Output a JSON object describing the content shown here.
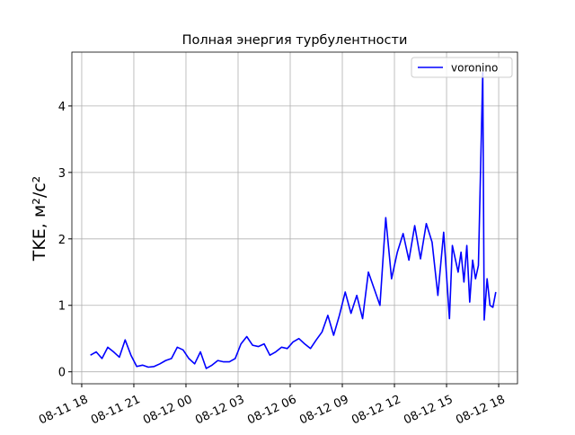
{
  "chart_data": {
    "type": "line",
    "title": "Полная энергия турбулентности",
    "y_label": "TKE, м²/с²",
    "x": [
      "08-11 18:30",
      "08-11 18:50",
      "08-11 19:10",
      "08-11 19:30",
      "08-11 19:50",
      "08-11 20:10",
      "08-11 20:30",
      "08-11 20:50",
      "08-11 21:10",
      "08-11 21:30",
      "08-11 21:50",
      "08-11 22:10",
      "08-11 22:30",
      "08-11 22:50",
      "08-11 23:10",
      "08-11 23:30",
      "08-11 23:50",
      "08-12 00:10",
      "08-12 00:30",
      "08-12 00:50",
      "08-12 01:10",
      "08-12 01:30",
      "08-12 01:50",
      "08-12 02:10",
      "08-12 02:30",
      "08-12 02:50",
      "08-12 03:10",
      "08-12 03:30",
      "08-12 03:50",
      "08-12 04:10",
      "08-12 04:30",
      "08-12 04:50",
      "08-12 05:10",
      "08-12 05:30",
      "08-12 05:50",
      "08-12 06:10",
      "08-12 06:30",
      "08-12 06:50",
      "08-12 07:10",
      "08-12 07:30",
      "08-12 07:50",
      "08-12 08:10",
      "08-12 08:30",
      "08-12 08:50",
      "08-12 09:10",
      "08-12 09:30",
      "08-12 09:50",
      "08-12 10:10",
      "08-12 10:30",
      "08-12 10:50",
      "08-12 11:10",
      "08-12 11:30",
      "08-12 11:50",
      "08-12 12:10",
      "08-12 12:30",
      "08-12 12:50",
      "08-12 13:10",
      "08-12 13:30",
      "08-12 13:50",
      "08-12 14:10",
      "08-12 14:30",
      "08-12 14:50",
      "08-12 15:10",
      "08-12 15:20",
      "08-12 15:40",
      "08-12 15:50",
      "08-12 16:00",
      "08-12 16:10",
      "08-12 16:20",
      "08-12 16:30",
      "08-12 16:40",
      "08-12 16:50",
      "08-12 17:05",
      "08-12 17:10",
      "08-12 17:20",
      "08-12 17:30",
      "08-12 17:40",
      "08-12 17:50"
    ],
    "series": [
      {
        "name": "voronino",
        "color": "#0000ff",
        "values": [
          0.25,
          0.3,
          0.2,
          0.37,
          0.3,
          0.22,
          0.48,
          0.25,
          0.08,
          0.1,
          0.07,
          0.08,
          0.12,
          0.17,
          0.2,
          0.37,
          0.33,
          0.2,
          0.12,
          0.3,
          0.05,
          0.1,
          0.17,
          0.15,
          0.15,
          0.2,
          0.42,
          0.53,
          0.4,
          0.38,
          0.42,
          0.25,
          0.3,
          0.37,
          0.35,
          0.45,
          0.5,
          0.42,
          0.35,
          0.48,
          0.6,
          0.85,
          0.55,
          0.85,
          1.2,
          0.88,
          1.15,
          0.8,
          1.5,
          1.25,
          1.0,
          2.32,
          1.4,
          1.8,
          2.08,
          1.68,
          2.2,
          1.7,
          2.23,
          1.95,
          1.15,
          2.1,
          0.8,
          1.9,
          1.5,
          1.8,
          1.35,
          1.9,
          1.05,
          1.68,
          1.4,
          1.6,
          4.5,
          0.78,
          1.4,
          1.0,
          0.97,
          1.2
        ]
      }
    ],
    "xlim": [
      "08-11 17:26",
      "08-12 19:05"
    ],
    "xticks": [
      {
        "value": "08-11 18:00",
        "label": "08-11 18"
      },
      {
        "value": "08-11 21:00",
        "label": "08-11 21"
      },
      {
        "value": "08-12 00:00",
        "label": "08-12 00"
      },
      {
        "value": "08-12 03:00",
        "label": "08-12 03"
      },
      {
        "value": "08-12 06:00",
        "label": "08-12 06"
      },
      {
        "value": "08-12 09:00",
        "label": "08-12 09"
      },
      {
        "value": "08-12 12:00",
        "label": "08-12 12"
      },
      {
        "value": "08-12 15:00",
        "label": "08-12 15"
      },
      {
        "value": "08-12 18:00",
        "label": "08-12 18"
      }
    ],
    "ylim": [
      -0.18,
      4.81
    ],
    "yticks": [
      0,
      1,
      2,
      3,
      4
    ],
    "grid": true,
    "legend": "upper right"
  }
}
